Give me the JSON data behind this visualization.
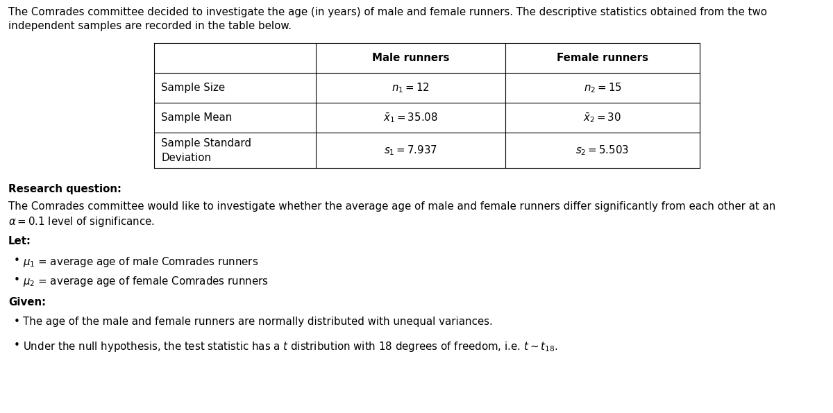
{
  "intro_line1": "The Comrades committee decided to investigate the age (in years) of male and female runners. The descriptive statistics obtained from the two",
  "intro_line2": "independent samples are recorded in the table below.",
  "col_headers": [
    "Male runners",
    "Female runners"
  ],
  "row_labels": [
    "Sample Size",
    "Sample Mean",
    "Sample Standard\nDeviation"
  ],
  "male_vals": [
    "$n_1 = 12$",
    "$\\bar{x}_1 = 35.08$",
    "$s_1 = 7.937$"
  ],
  "female_vals": [
    "$n_2 = 15$",
    "$\\bar{x}_2 = 30$",
    "$s_2 = 5.503$"
  ],
  "rq_label": "Research question:",
  "rq_line1": "The Comrades committee would like to investigate whether the average age of male and female runners differ significantly from each other at an",
  "rq_line2": "$\\alpha = 0.1$ level of significance.",
  "let_label": "Let:",
  "let_items": [
    "$\\mu_1$ = average age of male Comrades runners",
    "$\\mu_2$ = average age of female Comrades runners"
  ],
  "given_label": "Given:",
  "given_items": [
    "The age of the male and female runners are normally distributed with unequal variances.",
    "Under the null hypothesis, the test statistic has a $t$ distribution with 18 degrees of freedom, i.e. $t \\sim t_{18}$."
  ],
  "bg_color": "#ffffff",
  "text_color": "#000000"
}
